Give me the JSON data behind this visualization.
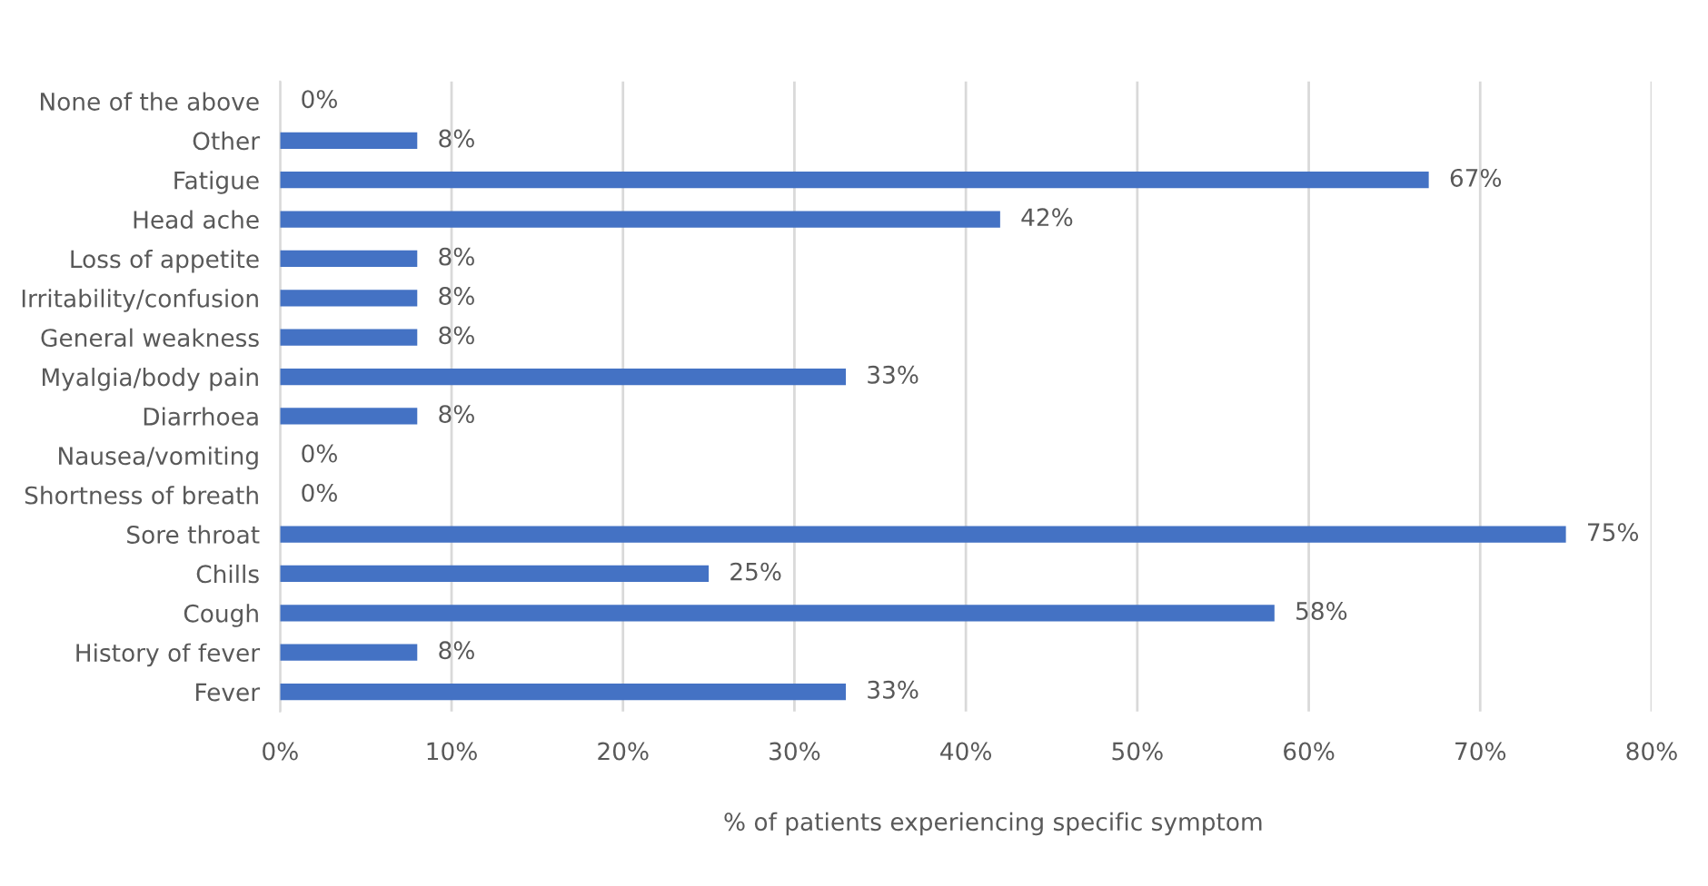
{
  "chart_data": {
    "type": "bar",
    "orientation": "horizontal",
    "categories": [
      "None of the above",
      "Other",
      "Fatigue",
      "Head ache",
      "Loss of appetite",
      "Irritability/confusion",
      "General weakness",
      "Myalgia/body pain",
      "Diarrhoea",
      "Nausea/vomiting",
      "Shortness of breath",
      "Sore throat",
      "Chills",
      "Cough",
      "History of fever",
      "Fever"
    ],
    "values": [
      0,
      8,
      67,
      42,
      8,
      8,
      8,
      33,
      8,
      0,
      0,
      75,
      25,
      58,
      8,
      33
    ],
    "value_labels": [
      "0%",
      "8%",
      "67%",
      "42%",
      "8%",
      "8%",
      "8%",
      "33%",
      "8%",
      "0%",
      "0%",
      "75%",
      "25%",
      "58%",
      "8%",
      "33%"
    ],
    "color": "#4472c4",
    "xlabel": "% of patients experiencing specific symptom",
    "xlim": [
      0,
      80
    ],
    "xticks": [
      {
        "value": 0,
        "label": "0%"
      },
      {
        "value": 10,
        "label": "10%"
      },
      {
        "value": 20,
        "label": "20%"
      },
      {
        "value": 30,
        "label": "30%"
      },
      {
        "value": 40,
        "label": "40%"
      },
      {
        "value": 50,
        "label": "50%"
      },
      {
        "value": 60,
        "label": "60%"
      },
      {
        "value": 70,
        "label": "70%"
      },
      {
        "value": 80,
        "label": "80%"
      }
    ],
    "grid": "x",
    "legend": false
  }
}
